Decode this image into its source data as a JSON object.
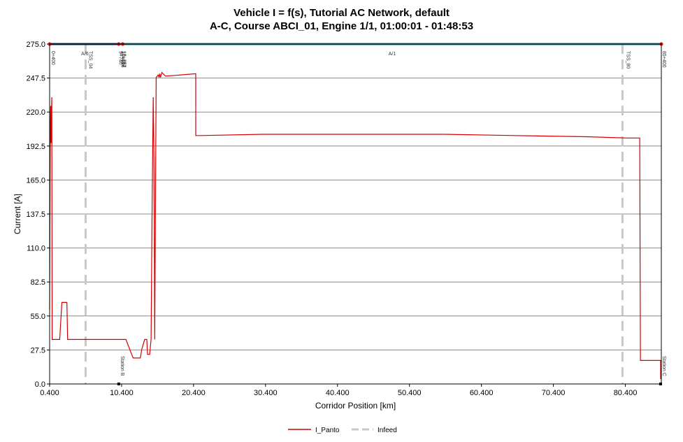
{
  "chart_data": {
    "type": "line",
    "title": "Vehicle I = f(s),  Tutorial AC Network, default",
    "subtitle": "A-C, Course ABCI_01, Engine 1/1, 01:00:01 - 01:48:53",
    "xlabel": "Corridor  Position [km]",
    "ylabel": "Current  [A]",
    "xlim": [
      0.4,
      85.4
    ],
    "ylim": [
      0,
      275
    ],
    "x_ticks": [
      "0.400",
      "10.400",
      "20.400",
      "30.400",
      "40.400",
      "50.400",
      "60.400",
      "70.400",
      "80.400"
    ],
    "y_ticks": [
      "0.0",
      "27.5",
      "55.0",
      "82.5",
      "110.0",
      "137.5",
      "165.0",
      "192.5",
      "220.0",
      "247.5",
      "275.0"
    ],
    "grid": true,
    "legend_position": "bottom-center",
    "series": [
      {
        "name": "I_Panto",
        "color": "#d40000",
        "x": [
          0.4,
          0.5,
          0.55,
          0.6,
          0.65,
          0.7,
          0.75,
          1.0,
          1.8,
          2.1,
          2.8,
          2.9,
          3.3,
          6.5,
          9.0,
          9.5,
          10.0,
          11.0,
          12.0,
          12.6,
          13.0,
          13.2,
          13.6,
          13.8,
          13.9,
          14.0,
          14.3,
          14.5,
          14.65,
          14.8,
          14.9,
          15.0,
          15.2,
          15.5,
          15.6,
          15.7,
          15.8,
          16.0,
          16.5,
          20.7,
          20.7,
          21.5,
          30.0,
          45.0,
          55.0,
          65.0,
          75.0,
          80.5,
          81.6,
          82.4,
          82.5,
          85.3,
          85.3
        ],
        "y": [
          60,
          210,
          225,
          195,
          220,
          232,
          36,
          36,
          36,
          66,
          66,
          36,
          36,
          36,
          36,
          36,
          36,
          36,
          21,
          21,
          21,
          28,
          36,
          36,
          36,
          24,
          24,
          36,
          150,
          232,
          180,
          36,
          248,
          250,
          248,
          251,
          248,
          252,
          249,
          251,
          201,
          201,
          202,
          202,
          202,
          201,
          200,
          199,
          199,
          199,
          19,
          19,
          4
        ]
      },
      {
        "name": "Infeed",
        "color": "#c8c8c8",
        "x_positions": [
          5.4,
          80.0
        ]
      }
    ],
    "annotations": {
      "top_labels": [
        "0+400",
        "A/6",
        "TSS_04",
        "9+746",
        "10+056",
        "10+157",
        "10+252",
        "A/1",
        "TSS_80",
        "85+400"
      ],
      "bottom_labels": [
        "Station B",
        "Station C"
      ]
    }
  }
}
